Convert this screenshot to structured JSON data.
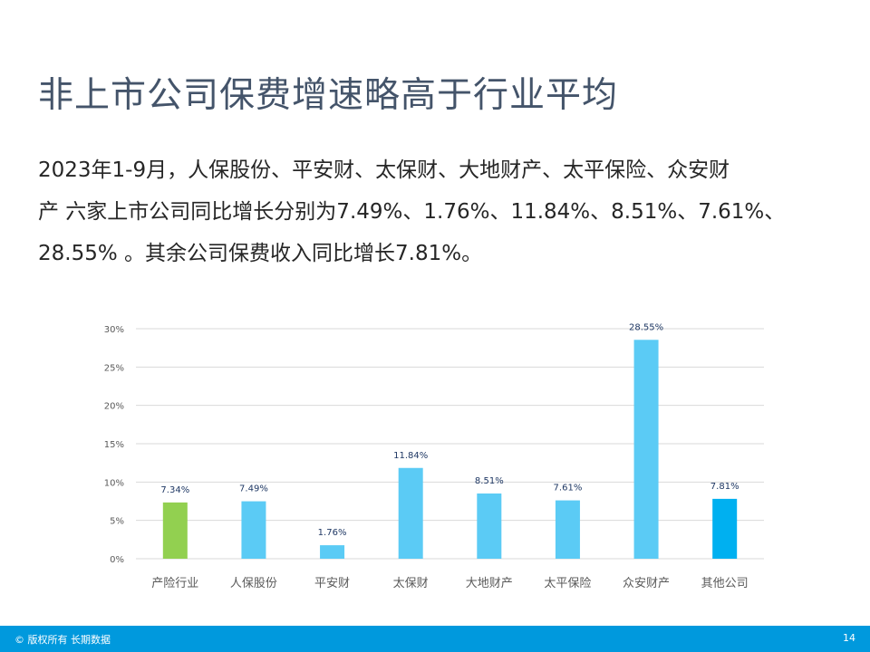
{
  "title": "非上市公司保费增速略高于行业平均",
  "body_lines": [
    "2023年1-9月，人保股份、平安财、太保财、大地财产、太平保险、众安财",
    "产 六家上市公司同比增长分别为7.49%、1.76%、11.84%、8.51%、7.61%、",
    "28.55% 。其余公司保费收入同比增长7.81%。"
  ],
  "chart_data": {
    "type": "bar",
    "categories": [
      "产险行业",
      "人保股份",
      "平安财",
      "太保财",
      "大地财产",
      "太平保险",
      "众安财产",
      "其他公司"
    ],
    "values": [
      7.34,
      7.49,
      1.76,
      11.84,
      8.51,
      7.61,
      28.55,
      7.81
    ],
    "data_labels": [
      "7.34%",
      "7.49%",
      "1.76%",
      "11.84%",
      "8.51%",
      "7.61%",
      "28.55%",
      "7.81%"
    ],
    "bar_colors": [
      "#92D050",
      "#5BCBF5",
      "#5BCBF5",
      "#5BCBF5",
      "#5BCBF5",
      "#5BCBF5",
      "#5BCBF5",
      "#00B0F0"
    ],
    "ylim": [
      0,
      30
    ],
    "yticks": [
      "0%",
      "5%",
      "10%",
      "15%",
      "20%",
      "25%",
      "30%"
    ],
    "grid": true,
    "legend": "none"
  },
  "footer": {
    "copyright": "© 版权所有 长期数据",
    "page_number": "14"
  }
}
